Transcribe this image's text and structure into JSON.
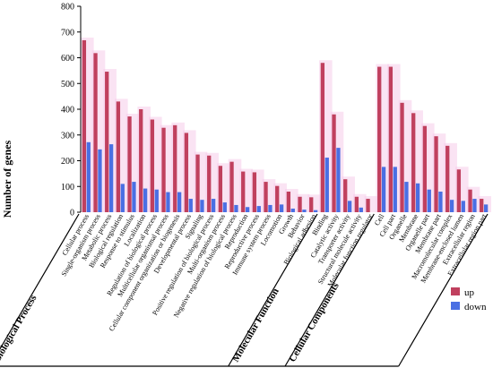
{
  "chart_data": {
    "type": "bar",
    "ylabel": "Number of genes",
    "ylim": [
      0,
      800
    ],
    "yticks": [
      0,
      100,
      200,
      300,
      400,
      500,
      600,
      700,
      800
    ],
    "grid": false,
    "legend_position": "bottom-right",
    "colors": {
      "up": "#c0405e",
      "down": "#4a6fe3"
    },
    "categories": [
      "Cellular process",
      "Single-organism process",
      "Metabolic process",
      "Biological regulation",
      "Response to stimulus",
      "Localization",
      "Regulation of biological process",
      "Multicellular organismal process",
      "Cellular component organization or biogenesis",
      "Developmental process",
      "Signaling",
      "Positive regulation of biological process",
      "Multi-organism process",
      "Negative regulation of biological process",
      "Reproduction",
      "Reproductive process",
      "Immune system process",
      "Locomotion",
      "Growth",
      "Behavior",
      "Biological adhesion",
      "Binding",
      "Catalytic activity",
      "Transporter activity",
      "Structural molecule activity",
      "Molecular function regulator",
      "Cell",
      "Cell part",
      "Organelle",
      "Membrane",
      "Organelle part",
      "Membrane part",
      "Macromolecular complex",
      "Membrane-enclosed lumen",
      "Extracellular region",
      "Extracellular region part"
    ],
    "series": [
      {
        "name": "up",
        "values": [
          668,
          618,
          546,
          430,
          372,
          400,
          360,
          328,
          338,
          308,
          224,
          220,
          180,
          196,
          158,
          155,
          118,
          102,
          80,
          60,
          58,
          580,
          380,
          128,
          60,
          52,
          565,
          565,
          425,
          385,
          335,
          295,
          258,
          166,
          88,
          52
        ]
      },
      {
        "name": "down",
        "values": [
          272,
          244,
          264,
          110,
          118,
          92,
          88,
          78,
          78,
          52,
          48,
          52,
          38,
          28,
          20,
          24,
          28,
          30,
          14,
          10,
          8,
          212,
          250,
          44,
          18,
          0,
          176,
          176,
          118,
          112,
          88,
          80,
          48,
          44,
          52,
          30
        ]
      }
    ],
    "groups": [
      {
        "label": "Biological Process",
        "count": 21
      },
      {
        "label": "Molecular Function",
        "count": 5
      },
      {
        "label": "Cellular Components",
        "count": 10
      }
    ]
  }
}
